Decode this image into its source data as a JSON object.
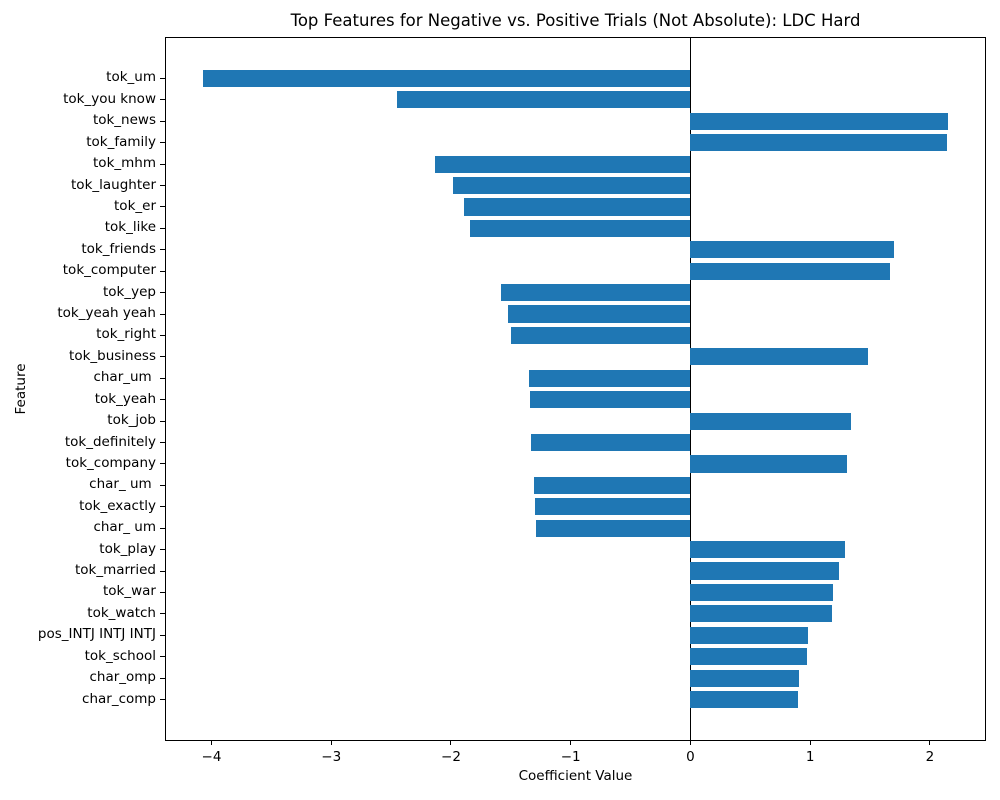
{
  "chart_data": {
    "type": "bar",
    "orientation": "horizontal",
    "title": "Top Features for Negative vs. Positive Trials (Not Absolute): LDC Hard",
    "xlabel": "Coefficient Value",
    "ylabel": "Feature",
    "bar_color": "#1f77b4",
    "axis_color": "#000000",
    "background_color": "#ffffff",
    "grid": false,
    "legend": null,
    "zero_line": true,
    "xlim": [
      -4.38,
      2.46
    ],
    "xticks": [
      -4,
      -3,
      -2,
      -1,
      0,
      1,
      2
    ],
    "categories": [
      "tok_um",
      "tok_you know",
      "tok_news",
      "tok_family",
      "tok_mhm",
      "tok_laughter",
      "tok_er",
      "tok_like",
      "tok_friends",
      "tok_computer",
      "tok_yep",
      "tok_yeah yeah",
      "tok_right",
      "tok_business",
      "char_um ",
      "tok_yeah",
      "tok_job",
      "tok_definitely",
      "tok_company",
      "char_ um ",
      "tok_exactly",
      "char_ um",
      "tok_play",
      "tok_married",
      "tok_war",
      "tok_watch",
      "pos_INTJ INTJ INTJ",
      "tok_school",
      "char_omp",
      "char_comp"
    ],
    "values": [
      -4.07,
      -2.45,
      2.15,
      2.14,
      -2.13,
      -1.98,
      -1.89,
      -1.84,
      1.7,
      1.67,
      -1.58,
      -1.52,
      -1.5,
      1.48,
      -1.35,
      -1.34,
      1.34,
      -1.33,
      1.31,
      -1.31,
      -1.3,
      -1.29,
      1.29,
      1.24,
      1.19,
      1.18,
      0.98,
      0.97,
      0.91,
      0.9
    ]
  }
}
